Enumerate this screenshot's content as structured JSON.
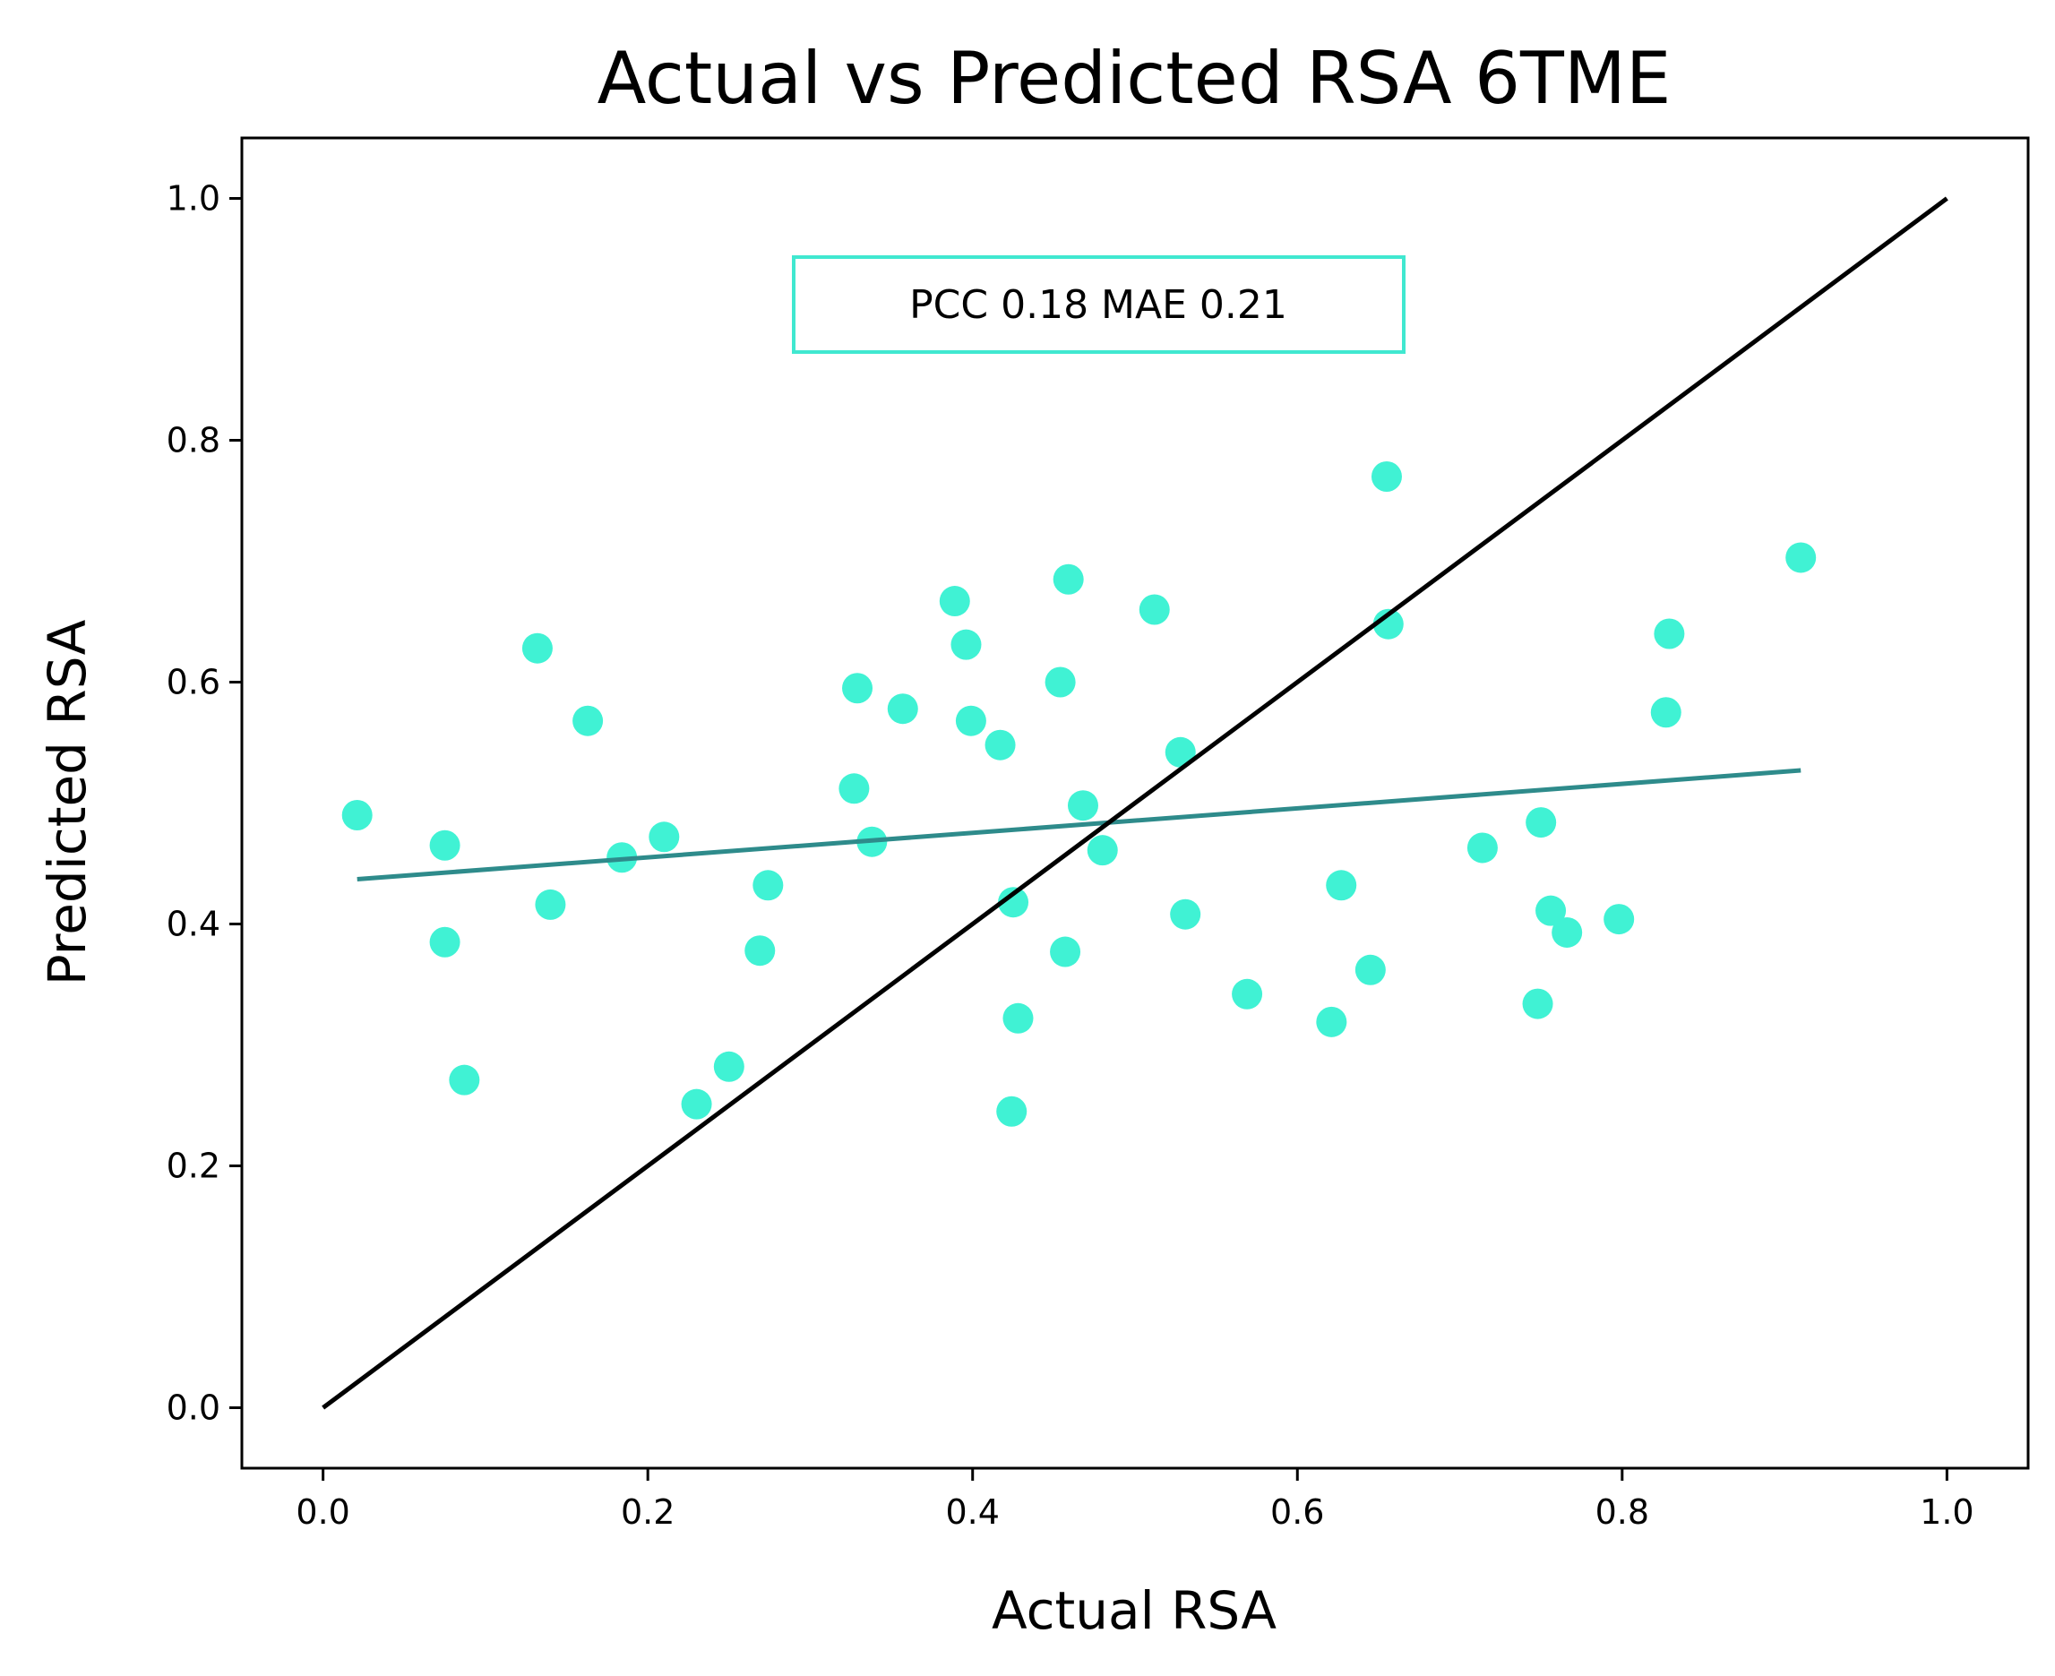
{
  "chart_data": {
    "type": "scatter",
    "title": "Actual vs Predicted RSA 6TME",
    "xlabel": "Actual RSA",
    "ylabel": "Predicted RSA",
    "xlim": [
      -0.05,
      1.05
    ],
    "ylim": [
      -0.05,
      1.05
    ],
    "xticks": [
      "0.0",
      "0.2",
      "0.4",
      "0.6",
      "0.8",
      "1.0"
    ],
    "yticks": [
      "0.0",
      "0.2",
      "0.4",
      "0.6",
      "0.8",
      "1.0"
    ],
    "grid": false,
    "annotation": "PCC 0.18 MAE 0.21",
    "colors": {
      "points": "#40f2d4",
      "fit_line": "#2e8b8b",
      "identity_line": "#000000",
      "annotation_border": "#40e8d0"
    },
    "points": [
      [
        0.021,
        0.49
      ],
      [
        0.075,
        0.465
      ],
      [
        0.075,
        0.385
      ],
      [
        0.087,
        0.271
      ],
      [
        0.132,
        0.628
      ],
      [
        0.14,
        0.416
      ],
      [
        0.163,
        0.568
      ],
      [
        0.184,
        0.455
      ],
      [
        0.21,
        0.472
      ],
      [
        0.23,
        0.251
      ],
      [
        0.25,
        0.282
      ],
      [
        0.269,
        0.378
      ],
      [
        0.274,
        0.432
      ],
      [
        0.327,
        0.512
      ],
      [
        0.329,
        0.595
      ],
      [
        0.338,
        0.468
      ],
      [
        0.357,
        0.578
      ],
      [
        0.389,
        0.667
      ],
      [
        0.396,
        0.631
      ],
      [
        0.399,
        0.568
      ],
      [
        0.417,
        0.548
      ],
      [
        0.424,
        0.245
      ],
      [
        0.425,
        0.418
      ],
      [
        0.428,
        0.322
      ],
      [
        0.454,
        0.6
      ],
      [
        0.457,
        0.377
      ],
      [
        0.459,
        0.685
      ],
      [
        0.468,
        0.498
      ],
      [
        0.48,
        0.461
      ],
      [
        0.512,
        0.66
      ],
      [
        0.528,
        0.542
      ],
      [
        0.531,
        0.408
      ],
      [
        0.569,
        0.342
      ],
      [
        0.621,
        0.319
      ],
      [
        0.627,
        0.432
      ],
      [
        0.645,
        0.362
      ],
      [
        0.655,
        0.77
      ],
      [
        0.656,
        0.648
      ],
      [
        0.714,
        0.463
      ],
      [
        0.748,
        0.334
      ],
      [
        0.75,
        0.484
      ],
      [
        0.756,
        0.411
      ],
      [
        0.766,
        0.393
      ],
      [
        0.798,
        0.404
      ],
      [
        0.827,
        0.575
      ],
      [
        0.829,
        0.64
      ],
      [
        0.91,
        0.703
      ]
    ],
    "fit_line": {
      "x": [
        0.021,
        0.91
      ],
      "y": [
        0.437,
        0.527
      ]
    },
    "identity_line": {
      "x": [
        0.0,
        1.0
      ],
      "y": [
        0.0,
        1.0
      ]
    }
  }
}
